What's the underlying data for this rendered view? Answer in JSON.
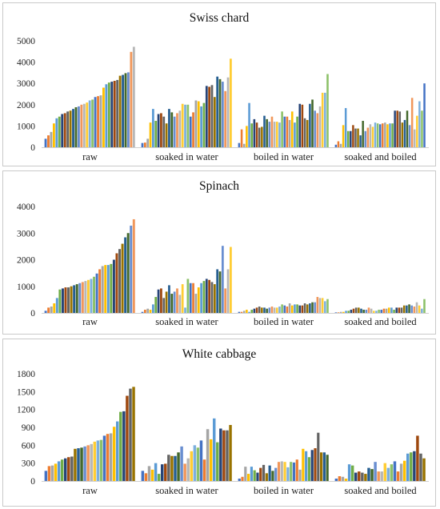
{
  "chart_data": [
    {
      "type": "bar",
      "title": "Swiss chard",
      "categories": [
        "raw",
        "soaked in water",
        "boiled in water",
        "soaked and boiled"
      ],
      "ylim": [
        0,
        5000
      ],
      "yticks": [
        0,
        1000,
        2000,
        3000,
        4000,
        5000
      ],
      "grid": false,
      "series_values": [
        [
          400,
          560,
          720,
          1120,
          1360,
          1440,
          1560,
          1600,
          1680,
          1720,
          1800,
          1880,
          1920,
          2000,
          2040,
          2100,
          2200,
          2240,
          2360,
          2400,
          2440,
          2800,
          2960,
          3040,
          3080,
          3120,
          3160,
          3360,
          3400,
          3480,
          3520,
          4480,
          4720
        ],
        [
          200,
          220,
          400,
          1160,
          1800,
          1240,
          1560,
          1600,
          1440,
          1120,
          1800,
          1640,
          1440,
          1600,
          1720,
          2040,
          2000,
          2000,
          1440,
          1640,
          2200,
          2160,
          1920,
          2080,
          2880,
          2840,
          2920,
          2360,
          3320,
          3200,
          3080,
          2640,
          3280,
          4160
        ],
        [
          200,
          840,
          160,
          1000,
          2080,
          1120,
          1320,
          1160,
          920,
          960,
          1480,
          1320,
          1200,
          1440,
          1200,
          1200,
          1160,
          1680,
          1440,
          1440,
          1280,
          1680,
          1160,
          1440,
          2040,
          2000,
          1360,
          1280,
          2040,
          2240,
          1720,
          1600,
          1920,
          2560,
          2560,
          3440
        ],
        [
          120,
          280,
          160,
          1040,
          1840,
          760,
          760,
          1040,
          880,
          880,
          560,
          1240,
          760,
          920,
          1080,
          960,
          1160,
          1120,
          1080,
          1120,
          1160,
          1080,
          1120,
          1120,
          1720,
          1720,
          1680,
          1160,
          1280,
          1720,
          1040,
          2320,
          840,
          1480,
          2160,
          1720,
          3000
        ]
      ]
    },
    {
      "type": "bar",
      "title": "Spinach",
      "categories": [
        "raw",
        "soaked in water",
        "boiled in water",
        "soaked and boiled"
      ],
      "ylim": [
        0,
        4000
      ],
      "yticks": [
        0,
        1000,
        2000,
        3000,
        4000
      ],
      "grid": false,
      "series_values": [
        [
          80,
          200,
          240,
          360,
          560,
          880,
          920,
          960,
          960,
          1000,
          1040,
          1080,
          1120,
          1160,
          1200,
          1240,
          1280,
          1360,
          1480,
          1640,
          1760,
          1800,
          1800,
          1840,
          2000,
          2240,
          2400,
          2600,
          2840,
          3000,
          3280,
          3520
        ],
        [
          40,
          120,
          160,
          120,
          320,
          600,
          880,
          920,
          560,
          800,
          1040,
          720,
          800,
          920,
          680,
          1080,
          200,
          1280,
          1120,
          1120,
          720,
          960,
          1120,
          1200,
          1280,
          1240,
          1160,
          1080,
          1640,
          1560,
          2520,
          920,
          1640,
          2480
        ],
        [
          40,
          40,
          80,
          120,
          40,
          120,
          160,
          200,
          240,
          200,
          200,
          160,
          200,
          240,
          200,
          200,
          240,
          320,
          280,
          240,
          360,
          280,
          320,
          320,
          280,
          280,
          360,
          320,
          360,
          400,
          400,
          600,
          560,
          560,
          440,
          520
        ],
        [
          20,
          20,
          40,
          40,
          80,
          80,
          120,
          160,
          200,
          200,
          160,
          120,
          120,
          200,
          160,
          80,
          80,
          120,
          120,
          160,
          160,
          200,
          200,
          120,
          200,
          200,
          200,
          280,
          280,
          320,
          280,
          240,
          400,
          280,
          160,
          520
        ]
      ]
    },
    {
      "type": "bar",
      "title": "White cabbage",
      "categories": [
        "raw",
        "soaked in water",
        "boiled in water",
        "soaked and boiled"
      ],
      "ylim": [
        0,
        1800
      ],
      "yticks": [
        0,
        300,
        600,
        900,
        1200,
        1500,
        1800
      ],
      "grid": false,
      "series_values": [
        [
          170,
          250,
          260,
          290,
          330,
          360,
          380,
          400,
          410,
          540,
          550,
          560,
          580,
          600,
          620,
          660,
          680,
          690,
          760,
          790,
          800,
          910,
          1000,
          1160,
          1170,
          1430,
          1550,
          1580
        ],
        [
          170,
          130,
          250,
          190,
          300,
          120,
          280,
          290,
          440,
          420,
          420,
          480,
          580,
          290,
          380,
          500,
          600,
          560,
          680,
          360,
          870,
          700,
          1050,
          650,
          880,
          850,
          850,
          940
        ],
        [
          40,
          70,
          240,
          120,
          240,
          180,
          140,
          220,
          270,
          130,
          260,
          170,
          220,
          320,
          330,
          320,
          230,
          320,
          310,
          360,
          190,
          540,
          500,
          400,
          520,
          550,
          810,
          480,
          480,
          440
        ],
        [
          40,
          80,
          70,
          40,
          280,
          260,
          140,
          160,
          140,
          120,
          220,
          200,
          320,
          160,
          160,
          300,
          220,
          280,
          330,
          160,
          290,
          340,
          460,
          480,
          500,
          760,
          460,
          380
        ]
      ]
    }
  ]
}
